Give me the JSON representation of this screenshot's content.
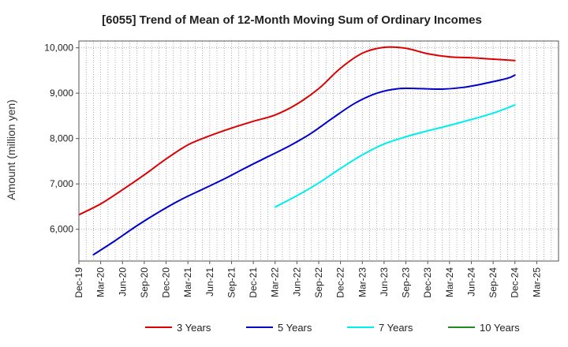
{
  "chart_data": {
    "type": "line",
    "title": "[6055]  Trend of Mean of 12-Month Moving Sum of Ordinary Incomes",
    "xlabel": "",
    "ylabel": "Amount (million yen)",
    "ylim": [
      5300,
      10150
    ],
    "x_months_range": [
      0,
      66
    ],
    "x_ticks": [
      {
        "label": "Dec-19",
        "m": 0
      },
      {
        "label": "Mar-20",
        "m": 3
      },
      {
        "label": "Jun-20",
        "m": 6
      },
      {
        "label": "Sep-20",
        "m": 9
      },
      {
        "label": "Dec-20",
        "m": 12
      },
      {
        "label": "Mar-21",
        "m": 15
      },
      {
        "label": "Jun-21",
        "m": 18
      },
      {
        "label": "Sep-21",
        "m": 21
      },
      {
        "label": "Dec-21",
        "m": 24
      },
      {
        "label": "Mar-22",
        "m": 27
      },
      {
        "label": "Jun-22",
        "m": 30
      },
      {
        "label": "Sep-22",
        "m": 33
      },
      {
        "label": "Dec-22",
        "m": 36
      },
      {
        "label": "Mar-23",
        "m": 39
      },
      {
        "label": "Jun-23",
        "m": 42
      },
      {
        "label": "Sep-23",
        "m": 45
      },
      {
        "label": "Dec-23",
        "m": 48
      },
      {
        "label": "Mar-24",
        "m": 51
      },
      {
        "label": "Jun-24",
        "m": 54
      },
      {
        "label": "Sep-24",
        "m": 57
      },
      {
        "label": "Dec-24",
        "m": 60
      },
      {
        "label": "Mar-25",
        "m": 63
      }
    ],
    "y_ticks": [
      {
        "label": "6,000",
        "v": 6000
      },
      {
        "label": "7,000",
        "v": 7000
      },
      {
        "label": "8,000",
        "v": 8000
      },
      {
        "label": "9,000",
        "v": 9000
      },
      {
        "label": "10,000",
        "v": 10000
      }
    ],
    "grid": true,
    "legend_position": "bottom",
    "series": [
      {
        "name": "3 Years",
        "color": "#dd0000",
        "points": [
          [
            0,
            6320
          ],
          [
            3,
            6560
          ],
          [
            6,
            6870
          ],
          [
            9,
            7200
          ],
          [
            12,
            7550
          ],
          [
            15,
            7860
          ],
          [
            18,
            8060
          ],
          [
            21,
            8230
          ],
          [
            24,
            8380
          ],
          [
            27,
            8520
          ],
          [
            30,
            8760
          ],
          [
            33,
            9100
          ],
          [
            36,
            9550
          ],
          [
            39,
            9880
          ],
          [
            42,
            10010
          ],
          [
            45,
            9990
          ],
          [
            48,
            9870
          ],
          [
            51,
            9800
          ],
          [
            54,
            9780
          ],
          [
            57,
            9750
          ],
          [
            60,
            9720
          ]
        ]
      },
      {
        "name": "5 Years",
        "color": "#0000cc",
        "points": [
          [
            2,
            5440
          ],
          [
            5,
            5750
          ],
          [
            8,
            6080
          ],
          [
            11,
            6380
          ],
          [
            14,
            6650
          ],
          [
            17,
            6880
          ],
          [
            20,
            7110
          ],
          [
            23,
            7360
          ],
          [
            26,
            7600
          ],
          [
            29,
            7840
          ],
          [
            32,
            8120
          ],
          [
            35,
            8460
          ],
          [
            38,
            8780
          ],
          [
            41,
            9000
          ],
          [
            44,
            9100
          ],
          [
            47,
            9100
          ],
          [
            50,
            9090
          ],
          [
            53,
            9130
          ],
          [
            56,
            9220
          ],
          [
            59,
            9330
          ],
          [
            60,
            9400
          ]
        ]
      },
      {
        "name": "7 Years",
        "color": "#00eeee",
        "points": [
          [
            27,
            6490
          ],
          [
            30,
            6740
          ],
          [
            33,
            7020
          ],
          [
            36,
            7340
          ],
          [
            39,
            7640
          ],
          [
            42,
            7880
          ],
          [
            45,
            8040
          ],
          [
            48,
            8170
          ],
          [
            51,
            8290
          ],
          [
            54,
            8420
          ],
          [
            57,
            8560
          ],
          [
            60,
            8740
          ]
        ]
      },
      {
        "name": "10 Years",
        "color": "#228b22",
        "points": []
      }
    ]
  }
}
